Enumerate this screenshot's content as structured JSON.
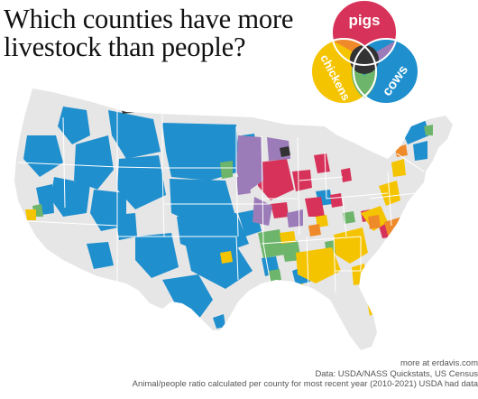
{
  "title": "Which counties have more livestock than people?",
  "legend": {
    "pigs": "pigs",
    "chickens": "chickens",
    "cows": "cows"
  },
  "colors": {
    "pigs": "#d7335a",
    "chickens": "#f5c400",
    "cows": "#1f8fce",
    "pigs_chickens": "#ef8a2a",
    "pigs_cows": "#9b7bb8",
    "chickens_cows": "#6db56a",
    "all_three": "#333333",
    "none": "#e6e6e6",
    "borders": "#ffffff"
  },
  "credits": {
    "line1": "more at erdavis.com",
    "line2": "Data: USDA/NASS Quickstats, US Census",
    "line3": "Animal/people ratio calculated per county for most recent year (2010-2021) USDA had data"
  }
}
